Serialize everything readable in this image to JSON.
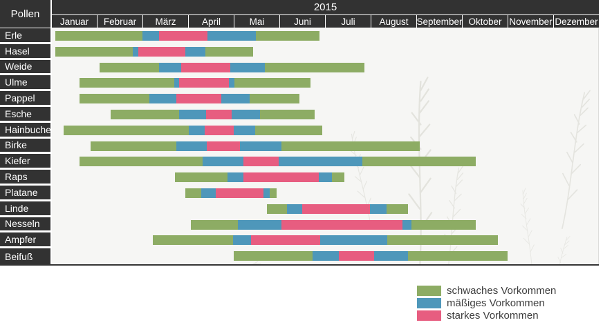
{
  "header": {
    "pollen_label": "Pollen",
    "year": "2015",
    "months": [
      "Januar",
      "Februar",
      "März",
      "April",
      "Mai",
      "Juni",
      "Juli",
      "August",
      "September",
      "Oktober",
      "November",
      "Dezember"
    ]
  },
  "chart_data": {
    "type": "gantt",
    "title": "2015",
    "x_axis": {
      "unit": "month",
      "range": [
        0,
        12
      ],
      "note": "0 = 1. Januar, 12 = 31. Dezember"
    },
    "levels": [
      {
        "id": "schwach",
        "label": "schwaches Vorkommen",
        "color": "#8dac64"
      },
      {
        "id": "maessig",
        "label": "mäßiges Vorkommen",
        "color": "#4e97ba"
      },
      {
        "id": "stark",
        "label": "starkes Vorkommen",
        "color": "#e75d80"
      }
    ],
    "rows": [
      {
        "name": "Erle",
        "segments": [
          {
            "level": "schwach",
            "from": 0.08,
            "to": 1.99
          },
          {
            "level": "maessig",
            "from": 1.99,
            "to": 2.35
          },
          {
            "level": "stark",
            "from": 2.35,
            "to": 3.41
          },
          {
            "level": "maessig",
            "from": 3.41,
            "to": 4.48
          },
          {
            "level": "schwach",
            "from": 4.48,
            "to": 5.87
          }
        ]
      },
      {
        "name": "Hasel",
        "segments": [
          {
            "level": "schwach",
            "from": 0.08,
            "to": 1.78
          },
          {
            "level": "maessig",
            "from": 1.78,
            "to": 1.9
          },
          {
            "level": "stark",
            "from": 1.9,
            "to": 2.93
          },
          {
            "level": "maessig",
            "from": 2.93,
            "to": 3.37
          },
          {
            "level": "schwach",
            "from": 3.37,
            "to": 4.41
          }
        ]
      },
      {
        "name": "Weide",
        "segments": [
          {
            "level": "schwach",
            "from": 1.05,
            "to": 2.35
          },
          {
            "level": "maessig",
            "from": 2.35,
            "to": 2.84
          },
          {
            "level": "stark",
            "from": 2.84,
            "to": 3.91
          },
          {
            "level": "maessig",
            "from": 3.91,
            "to": 4.67
          },
          {
            "level": "schwach",
            "from": 4.67,
            "to": 6.86
          }
        ]
      },
      {
        "name": "Ulme",
        "segments": [
          {
            "level": "schwach",
            "from": 0.61,
            "to": 2.69
          },
          {
            "level": "maessig",
            "from": 2.69,
            "to": 2.79
          },
          {
            "level": "stark",
            "from": 2.79,
            "to": 3.88
          },
          {
            "level": "maessig",
            "from": 3.88,
            "to": 4.01
          },
          {
            "level": "schwach",
            "from": 4.01,
            "to": 5.67
          }
        ]
      },
      {
        "name": "Pappel",
        "segments": [
          {
            "level": "schwach",
            "from": 0.61,
            "to": 2.14
          },
          {
            "level": "maessig",
            "from": 2.14,
            "to": 2.73
          },
          {
            "level": "stark",
            "from": 2.73,
            "to": 3.72
          },
          {
            "level": "maessig",
            "from": 3.72,
            "to": 4.34
          },
          {
            "level": "schwach",
            "from": 4.34,
            "to": 5.43
          }
        ]
      },
      {
        "name": "Esche",
        "segments": [
          {
            "level": "schwach",
            "from": 1.29,
            "to": 2.79
          },
          {
            "level": "maessig",
            "from": 2.79,
            "to": 3.38
          },
          {
            "level": "stark",
            "from": 3.38,
            "to": 3.94
          },
          {
            "level": "maessig",
            "from": 3.94,
            "to": 4.57
          },
          {
            "level": "schwach",
            "from": 4.57,
            "to": 5.77
          }
        ]
      },
      {
        "name": "Hainbuche",
        "segments": [
          {
            "level": "schwach",
            "from": 0.26,
            "to": 3.0
          },
          {
            "level": "maessig",
            "from": 3.0,
            "to": 3.35
          },
          {
            "level": "stark",
            "from": 3.35,
            "to": 3.99
          },
          {
            "level": "maessig",
            "from": 3.99,
            "to": 4.46
          },
          {
            "level": "schwach",
            "from": 4.46,
            "to": 5.93
          }
        ]
      },
      {
        "name": "Birke",
        "segments": [
          {
            "level": "schwach",
            "from": 0.85,
            "to": 2.73
          },
          {
            "level": "maessig",
            "from": 2.73,
            "to": 3.4
          },
          {
            "level": "stark",
            "from": 3.4,
            "to": 4.13
          },
          {
            "level": "maessig",
            "from": 4.13,
            "to": 5.04
          },
          {
            "level": "schwach",
            "from": 5.04,
            "to": 8.07
          }
        ]
      },
      {
        "name": "Kiefer",
        "segments": [
          {
            "level": "schwach",
            "from": 0.61,
            "to": 3.31
          },
          {
            "level": "maessig",
            "from": 3.31,
            "to": 4.2
          },
          {
            "level": "stark",
            "from": 4.2,
            "to": 4.98
          },
          {
            "level": "maessig",
            "from": 4.98,
            "to": 6.81
          },
          {
            "level": "schwach",
            "from": 6.81,
            "to": 9.3
          }
        ]
      },
      {
        "name": "Raps",
        "segments": [
          {
            "level": "schwach",
            "from": 2.7,
            "to": 3.85
          },
          {
            "level": "maessig",
            "from": 3.85,
            "to": 4.2
          },
          {
            "level": "stark",
            "from": 4.2,
            "to": 5.86
          },
          {
            "level": "maessig",
            "from": 5.86,
            "to": 6.14
          },
          {
            "level": "schwach",
            "from": 6.14,
            "to": 6.42
          }
        ]
      },
      {
        "name": "Platane",
        "segments": [
          {
            "level": "schwach",
            "from": 2.93,
            "to": 3.28
          },
          {
            "level": "maessig",
            "from": 3.28,
            "to": 3.6
          },
          {
            "level": "stark",
            "from": 3.6,
            "to": 4.64
          },
          {
            "level": "maessig",
            "from": 4.64,
            "to": 4.78
          },
          {
            "level": "schwach",
            "from": 4.78,
            "to": 4.93
          }
        ]
      },
      {
        "name": "Linde",
        "segments": [
          {
            "level": "schwach",
            "from": 4.72,
            "to": 5.16
          },
          {
            "level": "maessig",
            "from": 5.16,
            "to": 5.49
          },
          {
            "level": "stark",
            "from": 5.49,
            "to": 6.98
          },
          {
            "level": "maessig",
            "from": 6.98,
            "to": 7.34
          },
          {
            "level": "schwach",
            "from": 7.34,
            "to": 7.81
          }
        ]
      },
      {
        "name": "Nesseln",
        "segments": [
          {
            "level": "schwach",
            "from": 3.05,
            "to": 4.08
          },
          {
            "level": "maessig",
            "from": 4.08,
            "to": 5.04
          },
          {
            "level": "stark",
            "from": 5.04,
            "to": 7.69
          },
          {
            "level": "maessig",
            "from": 7.69,
            "to": 7.89
          },
          {
            "level": "schwach",
            "from": 7.89,
            "to": 9.3
          }
        ]
      },
      {
        "name": "Ampfer",
        "segments": [
          {
            "level": "schwach",
            "from": 2.22,
            "to": 3.97
          },
          {
            "level": "maessig",
            "from": 3.97,
            "to": 4.37
          },
          {
            "level": "stark",
            "from": 4.37,
            "to": 5.89
          },
          {
            "level": "maessig",
            "from": 5.89,
            "to": 7.36
          },
          {
            "level": "schwach",
            "from": 7.36,
            "to": 9.79
          }
        ]
      },
      {
        "name": "Beifuß",
        "segments": [
          {
            "level": "schwach",
            "from": 3.99,
            "to": 5.72
          },
          {
            "level": "maessig",
            "from": 5.72,
            "to": 6.3
          },
          {
            "level": "stark",
            "from": 6.3,
            "to": 7.07
          },
          {
            "level": "maessig",
            "from": 7.07,
            "to": 7.81
          },
          {
            "level": "schwach",
            "from": 7.81,
            "to": 10.0
          }
        ]
      }
    ]
  },
  "legend": {
    "items": [
      {
        "label": "schwaches Vorkommen",
        "color": "#8dac64"
      },
      {
        "label": "mäßiges Vorkommen",
        "color": "#4e97ba"
      },
      {
        "label": "starkes Vorkommen",
        "color": "#e75d80"
      }
    ]
  },
  "colors": {
    "header_background": "#323232",
    "chart_background": "#f6f6f4",
    "schwach": "#8dac64",
    "maessig": "#4e97ba",
    "stark": "#e75d80"
  }
}
